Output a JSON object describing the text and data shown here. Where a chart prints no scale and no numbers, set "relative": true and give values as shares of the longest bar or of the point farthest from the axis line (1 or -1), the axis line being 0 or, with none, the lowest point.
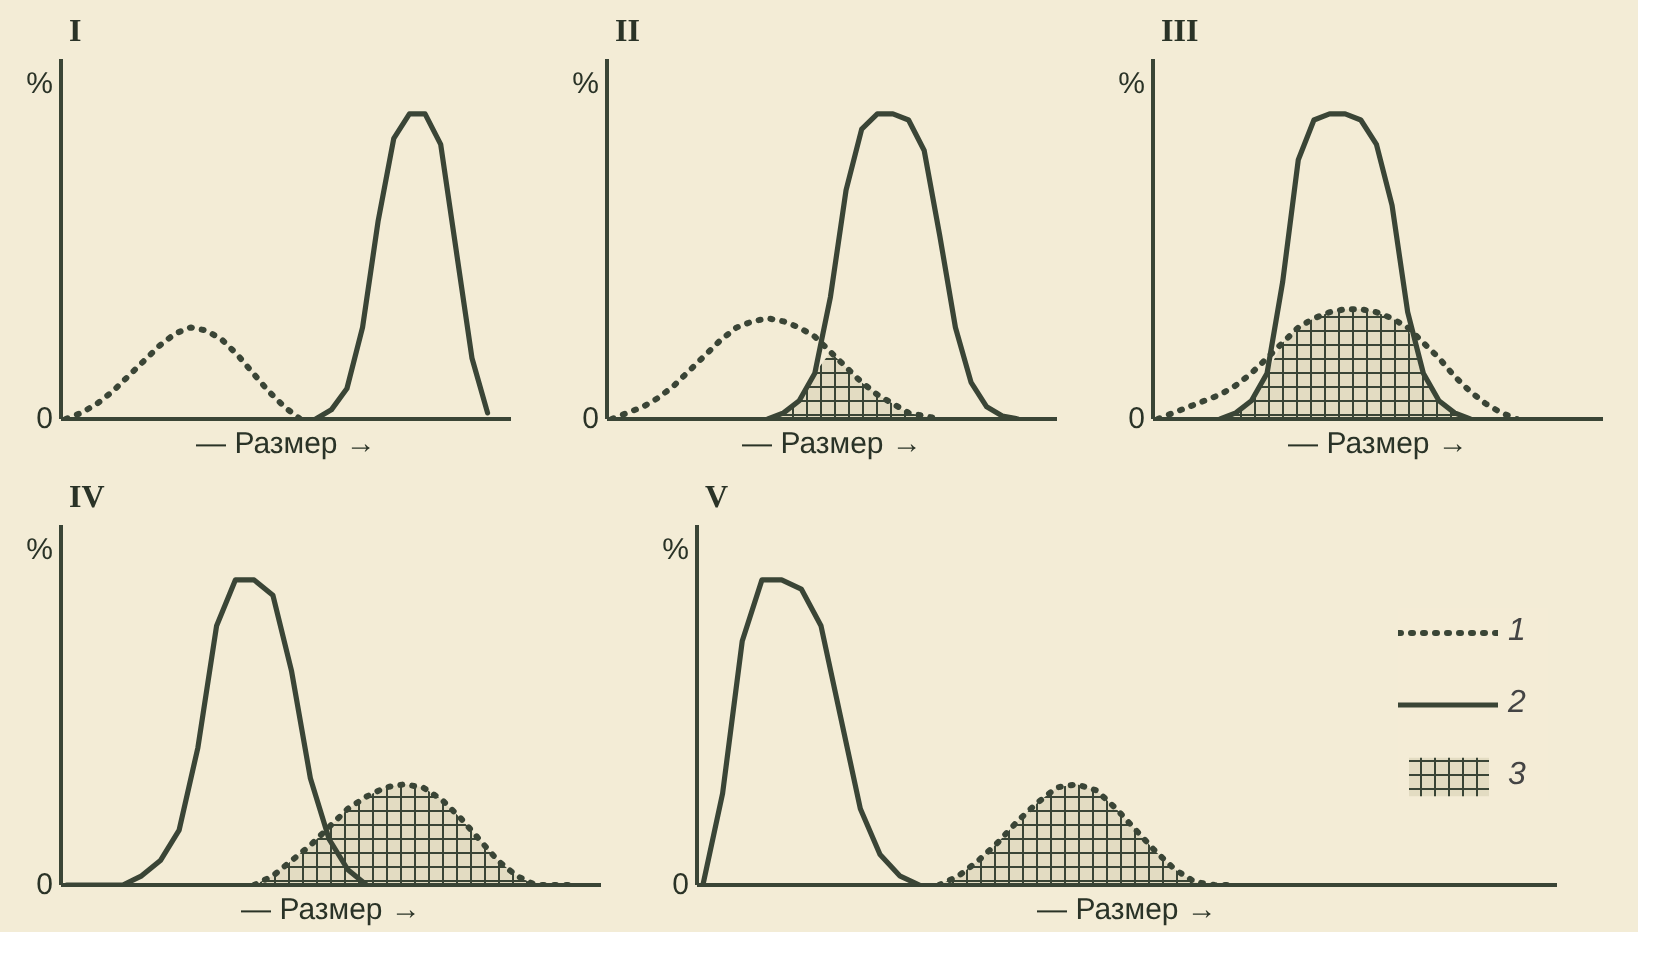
{
  "chart_data": [
    {
      "type": "line",
      "title": "I",
      "ylabel": "%",
      "xlabel": "— Размер →",
      "annotations": [
        "0"
      ],
      "relative": true,
      "grid": false,
      "legend": false,
      "categories": [
        null,
        null,
        null,
        null,
        null,
        null,
        null,
        null,
        null,
        null,
        null,
        null,
        null,
        null,
        null,
        null,
        null,
        null,
        null,
        null,
        null,
        null,
        null,
        null,
        null,
        null,
        null,
        null
      ],
      "series": [
        {
          "line_style": "dotted",
          "color": "#3a4536",
          "values": [
            0,
            0.02,
            0.05,
            0.09,
            0.14,
            0.19,
            0.24,
            0.28,
            0.3,
            0.29,
            0.26,
            0.21,
            0.15,
            0.09,
            0.04,
            0,
            null,
            null,
            null,
            null,
            null,
            null,
            null,
            null,
            null,
            null,
            null,
            null
          ]
        },
        {
          "line_style": "solid",
          "color": "#3a4536",
          "values": [
            null,
            null,
            null,
            null,
            null,
            null,
            null,
            null,
            null,
            null,
            null,
            null,
            null,
            null,
            null,
            null,
            0,
            0.03,
            0.1,
            0.3,
            0.65,
            0.92,
            1,
            1,
            0.9,
            0.55,
            0.2,
            0.02
          ]
        }
      ]
    },
    {
      "type": "line",
      "title": "II",
      "ylabel": "%",
      "xlabel": "— Размер →",
      "annotations": [
        "0"
      ],
      "relative": true,
      "grid": false,
      "legend": false,
      "categories": [
        null,
        null,
        null,
        null,
        null,
        null,
        null,
        null,
        null,
        null,
        null,
        null,
        null,
        null,
        null,
        null,
        null,
        null,
        null,
        null,
        null,
        null,
        null,
        null,
        null,
        null,
        null,
        null
      ],
      "series": [
        {
          "line_style": "dotted",
          "color": "#3a4536",
          "values": [
            0,
            0.02,
            0.04,
            0.07,
            0.11,
            0.16,
            0.21,
            0.26,
            0.3,
            0.32,
            0.33,
            0.32,
            0.3,
            0.27,
            0.22,
            0.17,
            0.12,
            0.08,
            0.05,
            0.02,
            0.01,
            0,
            null,
            null,
            null,
            null,
            null,
            null
          ]
        },
        {
          "line_style": "solid",
          "color": "#3a4536",
          "values": [
            null,
            null,
            null,
            null,
            null,
            null,
            null,
            null,
            null,
            null,
            0,
            0.02,
            0.06,
            0.15,
            0.4,
            0.75,
            0.95,
            1,
            1,
            0.98,
            0.88,
            0.6,
            0.3,
            0.12,
            0.04,
            0.01,
            0,
            null
          ]
        },
        {
          "type": "area",
          "color": "#e3dcc2",
          "values": [
            null,
            null,
            null,
            null,
            null,
            null,
            null,
            null,
            null,
            null,
            0,
            0.02,
            0.06,
            0.15,
            0.22,
            0.17,
            0.12,
            0.08,
            0.05,
            0.02,
            0.01,
            0,
            null,
            null,
            null,
            null,
            null,
            null
          ]
        }
      ]
    },
    {
      "type": "line",
      "title": "III",
      "ylabel": "%",
      "xlabel": "— Размер →",
      "annotations": [
        "0"
      ],
      "relative": true,
      "grid": false,
      "legend": false,
      "categories": [
        null,
        null,
        null,
        null,
        null,
        null,
        null,
        null,
        null,
        null,
        null,
        null,
        null,
        null,
        null,
        null,
        null,
        null,
        null,
        null,
        null,
        null,
        null,
        null,
        null,
        null,
        null,
        null
      ],
      "series": [
        {
          "line_style": "dotted",
          "color": "#3a4536",
          "values": [
            0,
            0.02,
            0.04,
            0.06,
            0.08,
            0.11,
            0.15,
            0.2,
            0.25,
            0.3,
            0.33,
            0.35,
            0.36,
            0.36,
            0.35,
            0.33,
            0.3,
            0.25,
            0.2,
            0.14,
            0.09,
            0.05,
            0.02,
            0,
            null,
            null,
            null,
            null
          ]
        },
        {
          "line_style": "solid",
          "color": "#3a4536",
          "values": [
            null,
            null,
            null,
            null,
            0,
            0.02,
            0.06,
            0.15,
            0.45,
            0.85,
            0.98,
            1,
            1,
            0.98,
            0.9,
            0.7,
            0.35,
            0.15,
            0.06,
            0.02,
            0,
            null,
            null,
            null,
            null,
            null,
            null,
            null
          ]
        },
        {
          "type": "area",
          "color": "#e3dcc2",
          "values": [
            null,
            null,
            null,
            null,
            0,
            0.02,
            0.06,
            0.15,
            0.25,
            0.3,
            0.33,
            0.35,
            0.36,
            0.36,
            0.35,
            0.33,
            0.3,
            0.15,
            0.06,
            0.02,
            0,
            null,
            null,
            null,
            null,
            null,
            null,
            null
          ]
        }
      ]
    },
    {
      "type": "line",
      "title": "IV",
      "ylabel": "%",
      "xlabel": "— Размер →",
      "annotations": [
        "0"
      ],
      "relative": true,
      "grid": false,
      "legend": false,
      "categories": [
        null,
        null,
        null,
        null,
        null,
        null,
        null,
        null,
        null,
        null,
        null,
        null,
        null,
        null,
        null,
        null,
        null,
        null,
        null,
        null,
        null,
        null,
        null,
        null,
        null,
        null,
        null,
        null
      ],
      "series": [
        {
          "line_style": "dotted",
          "color": "#3a4536",
          "values": [
            null,
            null,
            null,
            null,
            null,
            null,
            null,
            null,
            null,
            null,
            0,
            0.03,
            0.08,
            0.13,
            0.19,
            0.25,
            0.29,
            0.32,
            0.33,
            0.32,
            0.28,
            0.22,
            0.15,
            0.08,
            0.03,
            0,
            0,
            0
          ]
        },
        {
          "line_style": "solid",
          "color": "#3a4536",
          "values": [
            0,
            0,
            0,
            0,
            0.03,
            0.08,
            0.18,
            0.45,
            0.85,
            1,
            1,
            0.95,
            0.7,
            0.35,
            0.15,
            0.05,
            0,
            null,
            null,
            null,
            null,
            null,
            null,
            null,
            null,
            null,
            null,
            null
          ]
        },
        {
          "type": "area",
          "color": "#e3dcc2",
          "values": [
            null,
            null,
            null,
            null,
            null,
            null,
            null,
            null,
            null,
            null,
            0,
            0.03,
            0.08,
            0.13,
            0.19,
            0.25,
            0.29,
            0.32,
            0.33,
            0.32,
            0.28,
            0.22,
            0.15,
            0.08,
            0.03,
            0,
            null,
            null
          ]
        }
      ]
    },
    {
      "type": "line",
      "title": "V",
      "ylabel": "%",
      "xlabel": "— Размер →",
      "annotations": [
        "0"
      ],
      "relative": true,
      "grid": false,
      "legend": "right",
      "categories": [
        null,
        null,
        null,
        null,
        null,
        null,
        null,
        null,
        null,
        null,
        null,
        null,
        null,
        null,
        null,
        null,
        null,
        null,
        null,
        null,
        null,
        null,
        null,
        null,
        null,
        null,
        null,
        null
      ],
      "series": [
        {
          "name": "1",
          "line_style": "dotted",
          "color": "#3a4536",
          "values": [
            null,
            null,
            null,
            null,
            null,
            null,
            null,
            null,
            null,
            null,
            null,
            null,
            0,
            0.03,
            0.08,
            0.14,
            0.21,
            0.27,
            0.32,
            0.33,
            0.31,
            0.25,
            0.18,
            0.11,
            0.05,
            0.01,
            0,
            0
          ]
        },
        {
          "name": "2",
          "line_style": "solid",
          "color": "#3a4536",
          "values": [
            0,
            0.3,
            0.8,
            1,
            1,
            0.97,
            0.85,
            0.55,
            0.25,
            0.1,
            0.03,
            0,
            null,
            null,
            null,
            null,
            null,
            null,
            null,
            null,
            null,
            null,
            null,
            null,
            null,
            null,
            null,
            null
          ]
        },
        {
          "name": "3",
          "type": "area",
          "color": "#e3dcc2",
          "values": [
            null,
            null,
            null,
            null,
            null,
            null,
            null,
            null,
            null,
            null,
            null,
            null,
            0,
            0.03,
            0.08,
            0.14,
            0.21,
            0.27,
            0.32,
            0.33,
            0.31,
            0.25,
            0.18,
            0.11,
            0.05,
            0.01,
            0,
            null
          ]
        }
      ]
    }
  ]
}
